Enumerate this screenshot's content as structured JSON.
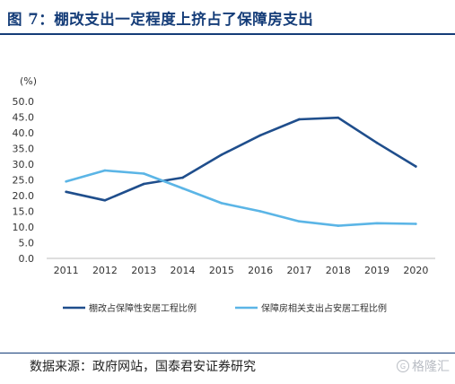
{
  "header": {
    "title": "图 7：棚改支出一定程度上挤占了保障房支出"
  },
  "footer": {
    "source": "数据来源：政府网站，国泰君安证券研究",
    "watermark": "格隆汇"
  },
  "chart_data": {
    "type": "line",
    "ylabel": "(%)",
    "xlabel": "",
    "ylim": [
      0,
      50
    ],
    "yticks": [
      "50.0",
      "45.0",
      "40.0",
      "35.0",
      "30.0",
      "25.0",
      "20.0",
      "15.0",
      "10.0",
      "5.0",
      "0.0"
    ],
    "categories": [
      "2011",
      "2012",
      "2013",
      "2014",
      "2015",
      "2016",
      "2017",
      "2018",
      "2019",
      "2020"
    ],
    "grid": false,
    "legend_position": "bottom",
    "series": [
      {
        "name": "棚改占保障性安居工程比例",
        "color": "#1f4e8c",
        "values": [
          21.2,
          18.5,
          23.7,
          25.7,
          33.0,
          39.2,
          44.3,
          44.8,
          36.8,
          29.3
        ]
      },
      {
        "name": "保障房相关支出占安居工程比例",
        "color": "#5bb5e6",
        "values": [
          24.5,
          28.0,
          27.0,
          22.3,
          17.6,
          15.0,
          11.8,
          10.4,
          11.2,
          11.0
        ]
      }
    ]
  }
}
